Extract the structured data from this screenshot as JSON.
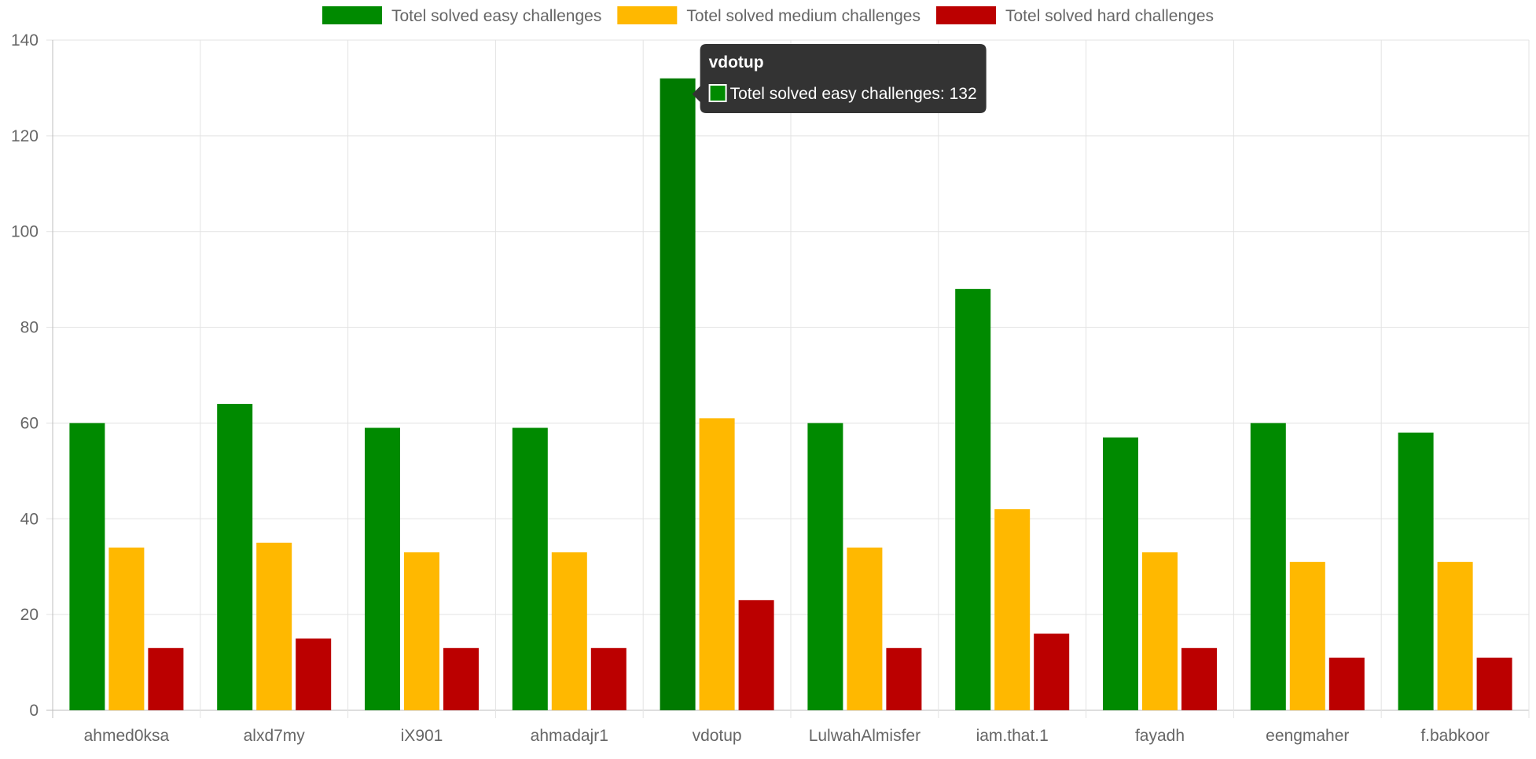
{
  "chart_data": {
    "type": "bar",
    "categories": [
      "ahmed0ksa",
      "alxd7my",
      "iX901",
      "ahmadajr1",
      "vdotup",
      "LulwahAlmisfer",
      "iam.that.1",
      "fayadh",
      "eengmaher",
      "f.babkoor"
    ],
    "series": [
      {
        "name": "Totel solved easy challenges",
        "color": "#008a00",
        "values": [
          60,
          64,
          59,
          59,
          132,
          60,
          88,
          57,
          60,
          58
        ]
      },
      {
        "name": "Totel solved medium challenges",
        "color": "#ffb800",
        "values": [
          34,
          35,
          33,
          33,
          61,
          34,
          42,
          33,
          31,
          31
        ]
      },
      {
        "name": "Totel solved hard challenges",
        "color": "#bb0000",
        "values": [
          13,
          15,
          13,
          13,
          23,
          13,
          16,
          13,
          11,
          11
        ]
      }
    ],
    "ylim": [
      0,
      140
    ],
    "yticks": [
      "0",
      "20",
      "40",
      "60",
      "80",
      "100",
      "120",
      "140"
    ],
    "grid": true,
    "legend_position": "top",
    "active_bar": {
      "category_index": 4,
      "series_index": 0,
      "color": "#007a00"
    },
    "tooltip": {
      "title": "vdotup",
      "body": "Totel solved easy challenges: 132",
      "background": "#333333",
      "swatch_color": "#008a00"
    }
  }
}
